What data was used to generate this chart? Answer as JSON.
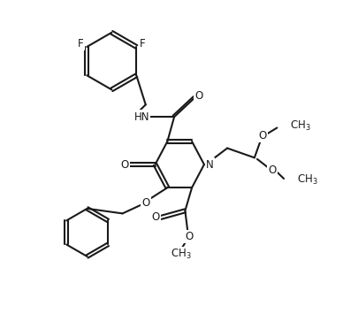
{
  "bg": "#ffffff",
  "lc": "#1a1a1a",
  "lw": 1.5,
  "fs": 8.5,
  "dbl_off": 0.06,
  "figsize": [
    3.88,
    3.72
  ],
  "dpi": 100,
  "xlim": [
    0.0,
    11.0
  ],
  "ylim": [
    -0.5,
    11.5
  ]
}
